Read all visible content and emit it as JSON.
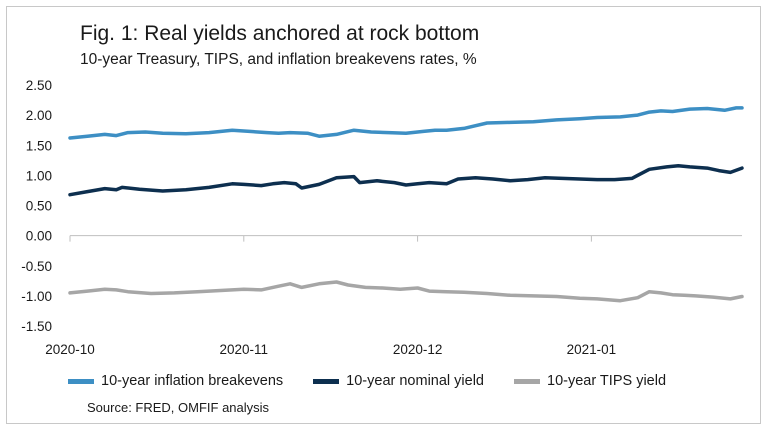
{
  "chart_data": {
    "type": "line",
    "title": "Fig. 1: Real yields anchored at rock bottom",
    "subtitle": "10-year Treasury, TIPS, and inflation breakevens rates, %",
    "source": "Source: FRED, OMFIF analysis",
    "xlabel": "",
    "ylabel": "",
    "x_ticks": [
      "2020-10",
      "2020-11",
      "2020-12",
      "2021-01"
    ],
    "y_ticks": [
      "2.50",
      "2.00",
      "1.50",
      "1.00",
      "0.50",
      "0.00",
      "-0.50",
      "-1.00",
      "-1.50"
    ],
    "ylim": [
      -1.5,
      2.5
    ],
    "grid": false,
    "legend_position": "bottom",
    "x_range": [
      0,
      116
    ],
    "x_tick_positions": [
      0,
      30,
      60,
      90
    ],
    "series": [
      {
        "name": "10-year inflation breakevens",
        "color": "#3d8fc4",
        "x": [
          0,
          3,
          6,
          8,
          10,
          13,
          16,
          20,
          24,
          28,
          31,
          34,
          36,
          38,
          41,
          43,
          46,
          49,
          52,
          55,
          58,
          61,
          63,
          65,
          68,
          72,
          76,
          80,
          84,
          88,
          91,
          95,
          98,
          100,
          102,
          104,
          107,
          110,
          113,
          115,
          116
        ],
        "values": [
          1.62,
          1.65,
          1.68,
          1.66,
          1.71,
          1.72,
          1.7,
          1.69,
          1.71,
          1.75,
          1.73,
          1.71,
          1.7,
          1.71,
          1.7,
          1.65,
          1.68,
          1.75,
          1.72,
          1.71,
          1.7,
          1.73,
          1.75,
          1.75,
          1.78,
          1.87,
          1.88,
          1.89,
          1.92,
          1.94,
          1.96,
          1.97,
          2.0,
          2.05,
          2.07,
          2.06,
          2.1,
          2.11,
          2.08,
          2.12,
          2.12
        ]
      },
      {
        "name": "10-year nominal yield",
        "color": "#0d2f4f",
        "x": [
          0,
          3,
          6,
          8,
          9,
          12,
          16,
          20,
          24,
          28,
          30,
          33,
          35,
          37,
          39,
          40,
          43,
          46,
          49,
          50,
          53,
          56,
          58,
          60,
          62,
          65,
          67,
          70,
          73,
          76,
          79,
          82,
          85,
          88,
          91,
          94,
          97,
          100,
          103,
          105,
          107,
          110,
          112,
          114,
          116
        ],
        "values": [
          0.68,
          0.73,
          0.78,
          0.76,
          0.8,
          0.77,
          0.74,
          0.76,
          0.8,
          0.86,
          0.85,
          0.83,
          0.86,
          0.88,
          0.86,
          0.79,
          0.85,
          0.96,
          0.98,
          0.88,
          0.91,
          0.88,
          0.84,
          0.86,
          0.88,
          0.86,
          0.94,
          0.96,
          0.94,
          0.91,
          0.93,
          0.96,
          0.95,
          0.94,
          0.93,
          0.93,
          0.95,
          1.1,
          1.14,
          1.16,
          1.14,
          1.12,
          1.08,
          1.05,
          1.12
        ]
      },
      {
        "name": "10-year TIPS yield",
        "color": "#a6a6a6",
        "x": [
          0,
          3,
          6,
          8,
          10,
          14,
          18,
          22,
          26,
          30,
          33,
          36,
          38,
          40,
          43,
          46,
          48,
          51,
          54,
          57,
          60,
          62,
          65,
          68,
          72,
          76,
          80,
          84,
          88,
          91,
          95,
          98,
          100,
          102,
          104,
          106,
          108,
          111,
          114,
          116
        ],
        "values": [
          -0.95,
          -0.92,
          -0.89,
          -0.9,
          -0.93,
          -0.96,
          -0.95,
          -0.93,
          -0.91,
          -0.89,
          -0.9,
          -0.84,
          -0.8,
          -0.86,
          -0.8,
          -0.77,
          -0.82,
          -0.86,
          -0.87,
          -0.89,
          -0.87,
          -0.92,
          -0.93,
          -0.94,
          -0.96,
          -0.99,
          -1.0,
          -1.01,
          -1.04,
          -1.05,
          -1.08,
          -1.03,
          -0.93,
          -0.95,
          -0.98,
          -0.99,
          -1.0,
          -1.02,
          -1.05,
          -1.01
        ]
      }
    ]
  }
}
